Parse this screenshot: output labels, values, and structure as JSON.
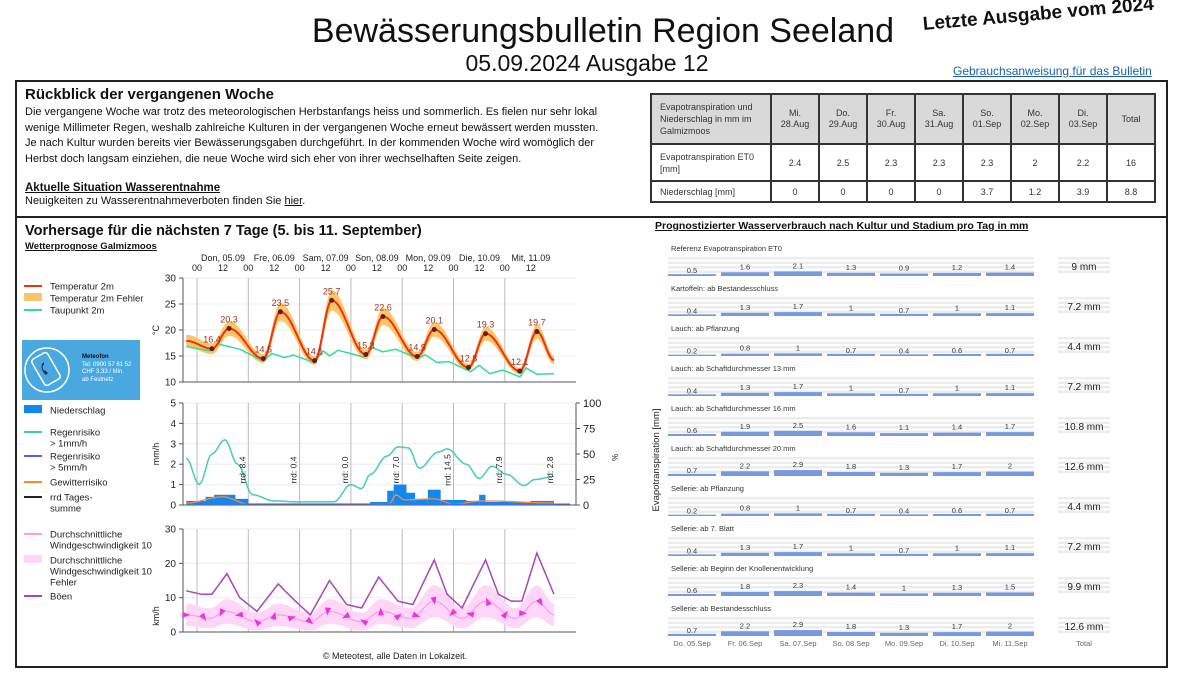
{
  "header": {
    "title": "Bewässerungsbulletin Region Seeland",
    "subtitle": "05.09.2024 Ausgabe 12",
    "stamp": "Letzte Ausgabe vom 2024",
    "guide_link": "Gebrauchsanweisung für das Bulletin"
  },
  "review": {
    "heading": "Rückblick der vergangenen Woche",
    "lines": [
      "Die vergangene Woche war trotz des meteorologischen Herbstanfangs heiss und sommerlich. Es fielen nur sehr lokal",
      "wenige Millimeter Regen, weshalb zahlreiche Kulturen in der vergangenen Woche erneut bewässert werden mussten.",
      "Je nach Kultur wurden bereits vier Bewässerungsgaben durchgeführt. In der kommenden Woche wird womöglich der",
      "Herbst doch langsam einziehen, die neue Woche wird sich eher von ihrer wechselhaften Seite zeigen."
    ],
    "water_heading": "Aktuelle Situation Wasserentnahme",
    "water_text": "Neuigkeiten zu Wasserentnahmeverboten finden Sie ",
    "water_link": "hier",
    "water_end": "."
  },
  "et_table": {
    "corner": "Evapotranspiration und Niederschlag in mm im Galmizmoos",
    "columns": [
      [
        "Mi.",
        "28.Aug"
      ],
      [
        "Do.",
        "29.Aug"
      ],
      [
        "Fr.",
        "30.Aug"
      ],
      [
        "Sa.",
        "31.Aug"
      ],
      [
        "So.",
        "01.Sep"
      ],
      [
        "Mo.",
        "02.Sep"
      ],
      [
        "Di.",
        "03.Sep"
      ]
    ],
    "total_label": "Total",
    "rows": [
      {
        "label": "Evapotranspiration ET0 [mm]",
        "values": [
          "2.4",
          "2.5",
          "2.3",
          "2.3",
          "2.3",
          "2",
          "2.2"
        ],
        "total": "16"
      },
      {
        "label": "Niederschlag [mm]",
        "values": [
          "0",
          "0",
          "0",
          "0",
          "3.7",
          "1.2",
          "3.9"
        ],
        "total": "8.8"
      }
    ]
  },
  "forecast": {
    "heading": "Vorhersage für die nächsten 7 Tage (5. bis 11. September)",
    "subheading": "Wetterprognose Galmizmoos",
    "days": [
      "Don, 05.09",
      "Fre, 06.09",
      "Sam, 07.09",
      "Son, 08.09",
      "Mon, 09.09",
      "Die, 10.09",
      "Mit, 11.09"
    ],
    "hours": [
      "00",
      "12"
    ],
    "meteofon": {
      "name": "Meteofon",
      "lines": [
        "Tel: 0900 57 61 52",
        "CHF 3.33 / Min.",
        "ab Festnetz"
      ]
    },
    "footer": "© Meteotest, alle Daten in Lokalzeit."
  },
  "chart_data": [
    {
      "type": "line",
      "ylabel": "°C",
      "ylim": [
        10,
        30
      ],
      "yticks": [
        10,
        15,
        20,
        25,
        30
      ],
      "grid": true,
      "legend": [
        "Temperatur 2m",
        "Temperatur 2m Fehler",
        "Taupunkt 2m"
      ],
      "colors": {
        "temp": "#ee3311",
        "band": "#fbc66a",
        "dew": "#33dd99"
      },
      "temperature": [
        [
          "2024-09-04T19:00",
          17.9
        ],
        [
          "2024-09-05T07:00",
          16.4
        ],
        [
          "2024-09-05T15:00",
          20.3
        ],
        [
          "2024-09-06T07:00",
          14.5
        ],
        [
          "2024-09-06T15:00",
          23.5
        ],
        [
          "2024-09-07T07:00",
          14.1
        ],
        [
          "2024-09-07T15:00",
          25.7
        ],
        [
          "2024-09-08T07:00",
          15.3
        ],
        [
          "2024-09-08T15:00",
          22.6
        ],
        [
          "2024-09-09T07:00",
          14.9
        ],
        [
          "2024-09-09T15:00",
          20.1
        ],
        [
          "2024-09-10T07:00",
          12.8
        ],
        [
          "2024-09-10T15:00",
          19.3
        ],
        [
          "2024-09-11T07:00",
          12.1
        ],
        [
          "2024-09-11T15:00",
          19.7
        ],
        [
          "2024-09-11T23:00",
          14.2
        ]
      ],
      "labeled_extremes": [
        "16.4",
        "20.3",
        "14.5",
        "23.5",
        "14.1",
        "25.7",
        "15.3",
        "22.6",
        "14.9",
        "20.1",
        "12.8",
        "19.3",
        "12.1",
        "19.7"
      ],
      "dewpoint": [
        [
          "2024-09-04T19:00",
          16.8
        ],
        [
          "2024-09-05T06:00",
          16.0
        ],
        [
          "2024-09-05T10:00",
          17.3
        ],
        [
          "2024-09-05T20:00",
          16.3
        ],
        [
          "2024-09-06T07:00",
          14.0
        ],
        [
          "2024-09-06T11:00",
          15.5
        ],
        [
          "2024-09-06T17:00",
          14.7
        ],
        [
          "2024-09-06T21:00",
          15.2
        ],
        [
          "2024-09-07T07:00",
          13.7
        ],
        [
          "2024-09-07T11:00",
          16.0
        ],
        [
          "2024-09-07T14:00",
          15.0
        ],
        [
          "2024-09-07T18:00",
          16.1
        ],
        [
          "2024-09-08T06:00",
          14.8
        ],
        [
          "2024-09-08T10:00",
          16.6
        ],
        [
          "2024-09-08T15:00",
          15.8
        ],
        [
          "2024-09-08T21:00",
          16.3
        ],
        [
          "2024-09-09T07:00",
          14.6
        ],
        [
          "2024-09-09T11:00",
          15.2
        ],
        [
          "2024-09-09T16:00",
          13.8
        ],
        [
          "2024-09-09T22:00",
          13.9
        ],
        [
          "2024-09-10T08:00",
          12.0
        ],
        [
          "2024-09-10T12:00",
          13.2
        ],
        [
          "2024-09-10T17:00",
          11.6
        ],
        [
          "2024-09-10T23:00",
          12.3
        ],
        [
          "2024-09-11T07:00",
          11.0
        ],
        [
          "2024-09-11T10:00",
          12.7
        ],
        [
          "2024-09-11T15:00",
          11.5
        ],
        [
          "2024-09-11T23:00",
          11.6
        ]
      ]
    },
    {
      "type": "bar",
      "ylabel": "mm/h",
      "ylabel_right": "%",
      "ylim": [
        0,
        5
      ],
      "yticks": [
        0,
        1,
        2,
        3,
        4,
        5
      ],
      "yticks_right": [
        0,
        25,
        50,
        75,
        100
      ],
      "grid": true,
      "legend": [
        "Niederschlag",
        "Regenrisiko\n > 1mm/h",
        "Regenrisiko\n > 5mm/h",
        "Gewitterrisiko",
        "rrd Tages-\nsumme"
      ],
      "colors": {
        "rain": "#1188ee",
        "risk1": "#44ccbb",
        "risk5": "#5566dd",
        "thunder": "#ff8833",
        "sum": "#222222"
      },
      "daily_sums": [
        "rrd: 8.4",
        "rrd: 0.4",
        "rrd: 0.0",
        "rrd: 7.0",
        "rrd: 14.5",
        "rrd: 7.9",
        "rrd: 2.8"
      ],
      "precipitation": [
        [
          "2024-09-04T19:00",
          "2024-09-05T04:00",
          0.2
        ],
        [
          "2024-09-05T04:00",
          "2024-09-05T08:00",
          0.4
        ],
        [
          "2024-09-05T08:00",
          "2024-09-05T18:00",
          0.5
        ],
        [
          "2024-09-05T18:00",
          "2024-09-06T00:00",
          0.3
        ],
        [
          "2024-09-08T09:00",
          "2024-09-08T17:00",
          0.15
        ],
        [
          "2024-09-08T17:00",
          "2024-09-08T20:00",
          0.7
        ],
        [
          "2024-09-08T20:00",
          "2024-09-09T02:00",
          1.0
        ],
        [
          "2024-09-09T02:00",
          "2024-09-09T06:00",
          0.6
        ],
        [
          "2024-09-09T06:00",
          "2024-09-09T12:00",
          0.3
        ],
        [
          "2024-09-09T12:00",
          "2024-09-09T18:00",
          0.75
        ],
        [
          "2024-09-09T18:00",
          "2024-09-10T06:00",
          0.25
        ],
        [
          "2024-09-10T06:00",
          "2024-09-10T12:00",
          0.2
        ],
        [
          "2024-09-10T12:00",
          "2024-09-10T15:00",
          0.5
        ],
        [
          "2024-09-10T15:00",
          "2024-09-11T12:00",
          0.15
        ],
        [
          "2024-09-11T12:00",
          "2024-09-11T23:00",
          0.2
        ]
      ],
      "rain_risk_1mm_pct": [
        [
          "2024-09-04T19:00",
          46
        ],
        [
          "2024-09-05T01:00",
          20
        ],
        [
          "2024-09-05T07:00",
          50
        ],
        [
          "2024-09-05T13:00",
          64
        ],
        [
          "2024-09-05T19:00",
          40
        ],
        [
          "2024-09-06T02:00",
          10
        ],
        [
          "2024-09-06T12:00",
          4
        ],
        [
          "2024-09-07T00:00",
          3
        ],
        [
          "2024-09-07T16:00",
          3
        ],
        [
          "2024-09-08T00:00",
          20
        ],
        [
          "2024-09-08T05:00",
          16
        ],
        [
          "2024-09-08T09:00",
          30
        ],
        [
          "2024-09-08T17:00",
          48
        ],
        [
          "2024-09-08T22:00",
          57
        ],
        [
          "2024-09-09T03:00",
          56
        ],
        [
          "2024-09-09T08:00",
          36
        ],
        [
          "2024-09-09T17:00",
          52
        ],
        [
          "2024-09-09T21:00",
          55
        ],
        [
          "2024-09-10T06:00",
          40
        ],
        [
          "2024-09-10T12:00",
          26
        ],
        [
          "2024-09-10T18:00",
          38
        ],
        [
          "2024-09-11T01:00",
          30
        ],
        [
          "2024-09-11T09:00",
          19
        ],
        [
          "2024-09-11T14:00",
          25
        ],
        [
          "2024-09-11T23:00",
          28
        ]
      ],
      "thunder_risk_pct": [
        [
          "2024-09-04T19:00",
          2
        ],
        [
          "2024-09-05T12:00",
          8
        ],
        [
          "2024-09-06T00:00",
          1
        ],
        [
          "2024-09-08T18:00",
          1
        ],
        [
          "2024-09-08T21:00",
          10
        ],
        [
          "2024-09-09T01:00",
          5
        ],
        [
          "2024-09-09T15:00",
          6
        ],
        [
          "2024-09-10T00:00",
          1
        ],
        [
          "2024-09-10T14:00",
          4
        ],
        [
          "2024-09-11T23:00",
          2
        ]
      ]
    },
    {
      "type": "line",
      "ylabel": "km/h",
      "ylim": [
        0,
        30
      ],
      "yticks": [
        0,
        10,
        20,
        30
      ],
      "grid": true,
      "legend": [
        "Durchschnittliche\nWindgeschwindigkeit 10",
        "Durchschnittliche\nWindgeschwindigkeit 10\nFehler",
        "Böen"
      ],
      "colors": {
        "mean": "#ff99ee",
        "band": "#ffd6f7",
        "gust": "#aa44bb",
        "arrow": "#ee33dd"
      },
      "gusts": [
        [
          "2024-09-04T19:00",
          12
        ],
        [
          "2024-09-05T02:00",
          11
        ],
        [
          "2024-09-05T07:00",
          11
        ],
        [
          "2024-09-05T14:00",
          17
        ],
        [
          "2024-09-05T20:00",
          10
        ],
        [
          "2024-09-06T04:00",
          6
        ],
        [
          "2024-09-06T14:00",
          14
        ],
        [
          "2024-09-06T22:00",
          9
        ],
        [
          "2024-09-07T05:00",
          5
        ],
        [
          "2024-09-07T14:00",
          15
        ],
        [
          "2024-09-07T22:00",
          8
        ],
        [
          "2024-09-08T05:00",
          7
        ],
        [
          "2024-09-08T13:00",
          16
        ],
        [
          "2024-09-08T22:00",
          9
        ],
        [
          "2024-09-09T05:00",
          8
        ],
        [
          "2024-09-09T15:00",
          21
        ],
        [
          "2024-09-09T21:00",
          11
        ],
        [
          "2024-09-10T04:00",
          7
        ],
        [
          "2024-09-10T15:00",
          21
        ],
        [
          "2024-09-10T21:00",
          11
        ],
        [
          "2024-09-11T03:00",
          9
        ],
        [
          "2024-09-11T08:00",
          9
        ],
        [
          "2024-09-11T15:00",
          23
        ],
        [
          "2024-09-11T23:00",
          11
        ]
      ],
      "mean_wind": [
        [
          "2024-09-04T19:00",
          5
        ],
        [
          "2024-09-05T06:00",
          4
        ],
        [
          "2024-09-05T14:00",
          6
        ],
        [
          "2024-09-06T04:00",
          3
        ],
        [
          "2024-09-06T14:00",
          5
        ],
        [
          "2024-09-07T05:00",
          3
        ],
        [
          "2024-09-07T14:00",
          6
        ],
        [
          "2024-09-08T05:00",
          3
        ],
        [
          "2024-09-08T14:00",
          6
        ],
        [
          "2024-09-09T04:00",
          4
        ],
        [
          "2024-09-09T15:00",
          9
        ],
        [
          "2024-09-10T04:00",
          4
        ],
        [
          "2024-09-10T15:00",
          9
        ],
        [
          "2024-09-11T05:00",
          4
        ],
        [
          "2024-09-11T15:00",
          9
        ],
        [
          "2024-09-11T23:00",
          5
        ]
      ]
    },
    {
      "type": "bar",
      "title": "Prognostizierter Wasserverbrauch nach Kultur und Stadium pro Tag in mm",
      "ylabel": "Evapotranspiration [mm]",
      "categories": [
        "Do. 05.Sep",
        "Fr. 06.Sep",
        "Sa. 07.Sep",
        "So. 08.Sep",
        "Mo. 09.Sep",
        "Di. 10.Sep",
        "Mi. 11.Sep"
      ],
      "total_label": "Total",
      "color": "#7799dd",
      "series": [
        {
          "name": "Referenz Evapotranspiration ET0",
          "values": [
            0.5,
            1.6,
            2.1,
            1.3,
            0.9,
            1.2,
            1.4
          ],
          "total": "9 mm"
        },
        {
          "name": "Kartoffeln: ab Bestandesschluss",
          "values": [
            0.4,
            1.3,
            1.7,
            1,
            0.7,
            1,
            1.1
          ],
          "total": "7.2 mm"
        },
        {
          "name": "Lauch: ab Pflanzung",
          "values": [
            0.2,
            0.8,
            1,
            0.7,
            0.4,
            0.6,
            0.7
          ],
          "total": "4.4 mm"
        },
        {
          "name": "Lauch: ab Schaftdurchmesser 13 mm",
          "values": [
            0.4,
            1.3,
            1.7,
            1,
            0.7,
            1,
            1.1
          ],
          "total": "7.2 mm"
        },
        {
          "name": "Lauch: ab Schaftdurchmesser 16 mm",
          "values": [
            0.6,
            1.9,
            2.5,
            1.6,
            1.1,
            1.4,
            1.7
          ],
          "total": "10.8 mm"
        },
        {
          "name": "Lauch: ab Schaftdurchmesser 20 mm",
          "values": [
            0.7,
            2.2,
            2.9,
            1.8,
            1.3,
            1.7,
            2
          ],
          "total": "12.6 mm"
        },
        {
          "name": "Sellerie: ab Pflanzung",
          "values": [
            0.2,
            0.8,
            1,
            0.7,
            0.4,
            0.6,
            0.7
          ],
          "total": "4.4 mm"
        },
        {
          "name": "Sellerie: ab 7. Blatt",
          "values": [
            0.4,
            1.3,
            1.7,
            1,
            0.7,
            1,
            1.1
          ],
          "total": "7.2 mm"
        },
        {
          "name": "Sellerie: ab Beginn der Knollenentwicklung",
          "values": [
            0.6,
            1.8,
            2.3,
            1.4,
            1,
            1.3,
            1.5
          ],
          "total": "9.9 mm"
        },
        {
          "name": "Sellerie: ab Bestandesschluss",
          "values": [
            0.7,
            2.2,
            2.9,
            1.8,
            1.3,
            1.7,
            2
          ],
          "total": "12.6 mm"
        }
      ]
    }
  ]
}
